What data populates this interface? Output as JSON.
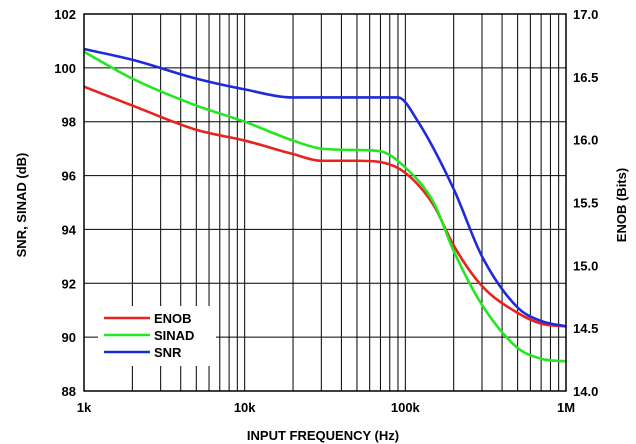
{
  "chart_data": {
    "type": "line",
    "x_scale": "log",
    "xlim": [
      1000,
      1000000
    ],
    "ylim_left": [
      88,
      102
    ],
    "ylim_right": [
      14.0,
      17.0
    ],
    "xlabel": "INPUT FREQUENCY (Hz)",
    "ylabel_left": "SNR, SINAD (dB)",
    "ylabel_right": "ENOB (Bits)",
    "x_tick_labels": [
      {
        "value": 1000,
        "label": "1k"
      },
      {
        "value": 10000,
        "label": "10k"
      },
      {
        "value": 100000,
        "label": "100k"
      },
      {
        "value": 1000000,
        "label": "1M"
      }
    ],
    "y_left_ticks": [
      88,
      90,
      92,
      94,
      96,
      98,
      100,
      102
    ],
    "y_right_ticks": [
      {
        "value": 14.0,
        "label": "14.0"
      },
      {
        "value": 14.5,
        "label": "14.5"
      },
      {
        "value": 15.0,
        "label": "15.0"
      },
      {
        "value": 15.5,
        "label": "15.5"
      },
      {
        "value": 16.0,
        "label": "16.0"
      },
      {
        "value": 16.5,
        "label": "16.5"
      },
      {
        "value": 17.0,
        "label": "17.0"
      }
    ],
    "grid": true,
    "legend_position": "bottom-left",
    "series": [
      {
        "name": "ENOB",
        "color": "#e8231e",
        "axis": "left",
        "points": [
          [
            1000,
            99.3
          ],
          [
            2000,
            98.6
          ],
          [
            5000,
            97.7
          ],
          [
            10000,
            97.3
          ],
          [
            20000,
            96.8
          ],
          [
            30000,
            96.55
          ],
          [
            50000,
            96.55
          ],
          [
            70000,
            96.5
          ],
          [
            100000,
            96.1
          ],
          [
            150000,
            94.9
          ],
          [
            200000,
            93.4
          ],
          [
            300000,
            91.9
          ],
          [
            500000,
            90.9
          ],
          [
            700000,
            90.5
          ],
          [
            1000000,
            90.4
          ]
        ]
      },
      {
        "name": "SINAD",
        "color": "#22e622",
        "axis": "left",
        "points": [
          [
            1000,
            100.6
          ],
          [
            2000,
            99.6
          ],
          [
            5000,
            98.6
          ],
          [
            10000,
            98.0
          ],
          [
            20000,
            97.3
          ],
          [
            30000,
            97.0
          ],
          [
            50000,
            96.95
          ],
          [
            70000,
            96.9
          ],
          [
            100000,
            96.3
          ],
          [
            150000,
            95.0
          ],
          [
            200000,
            93.2
          ],
          [
            300000,
            91.2
          ],
          [
            500000,
            89.6
          ],
          [
            700000,
            89.2
          ],
          [
            1000000,
            89.1
          ]
        ]
      },
      {
        "name": "SNR",
        "color": "#1f2bd9",
        "axis": "left",
        "points": [
          [
            1000,
            100.7
          ],
          [
            2000,
            100.3
          ],
          [
            5000,
            99.6
          ],
          [
            10000,
            99.2
          ],
          [
            20000,
            98.9
          ],
          [
            50000,
            98.9
          ],
          [
            90000,
            98.9
          ],
          [
            120000,
            98.0
          ],
          [
            200000,
            95.5
          ],
          [
            300000,
            93.0
          ],
          [
            500000,
            91.1
          ],
          [
            700000,
            90.6
          ],
          [
            1000000,
            90.4
          ]
        ]
      }
    ]
  }
}
